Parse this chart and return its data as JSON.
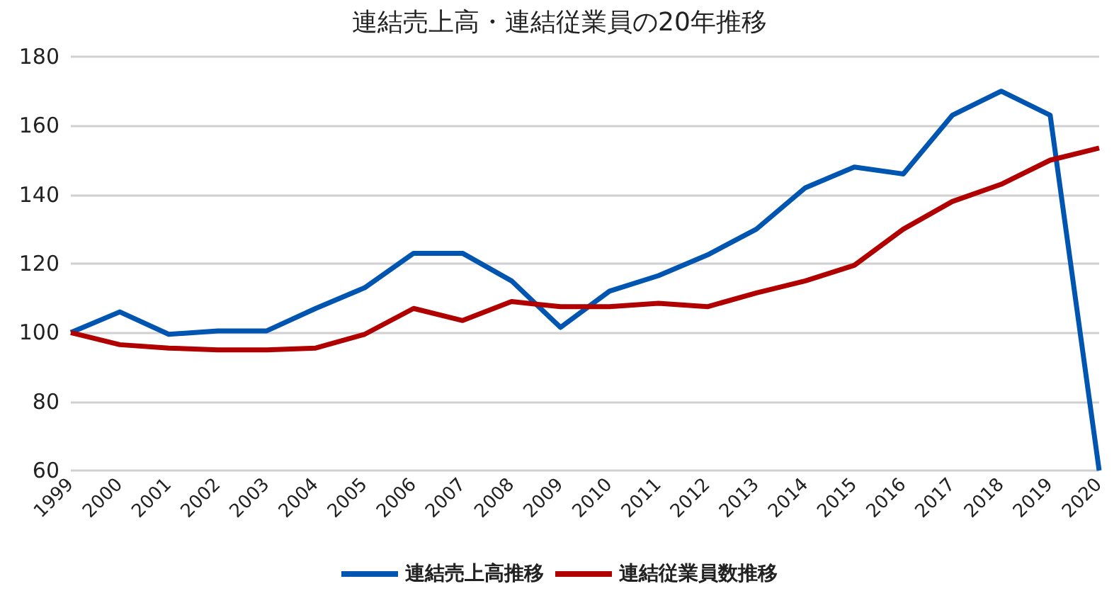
{
  "chart_data": {
    "type": "line",
    "title": "連結売上高・連結従業員の20年推移",
    "categories": [
      "1999",
      "2000",
      "2001",
      "2002",
      "2003",
      "2004",
      "2005",
      "2006",
      "2007",
      "2008",
      "2009",
      "2010",
      "2011",
      "2012",
      "2013",
      "2014",
      "2015",
      "2016",
      "2017",
      "2018",
      "2019",
      "2020"
    ],
    "series": [
      {
        "name": "連結売上高推移",
        "color": "#0055b0",
        "values": [
          100,
          106,
          99.5,
          100.5,
          100.5,
          107,
          113,
          123,
          123,
          115,
          101.5,
          112,
          116.5,
          122.5,
          130,
          142,
          148,
          146,
          163,
          170,
          163,
          60
        ]
      },
      {
        "name": "連結従業員数推移",
        "color": "#b00000",
        "values": [
          100,
          96.5,
          95.5,
          95,
          95,
          95.5,
          99.5,
          107,
          103.5,
          109,
          107.5,
          107.5,
          108.5,
          107.5,
          111.5,
          115,
          119.5,
          130,
          138,
          143,
          150,
          153.5
        ]
      }
    ],
    "ylim": [
      60,
      180
    ],
    "yticks": [
      60,
      80,
      100,
      120,
      140,
      160,
      180
    ],
    "grid": "y",
    "legend": "bottom",
    "marker": "none",
    "line_style": "solid"
  }
}
